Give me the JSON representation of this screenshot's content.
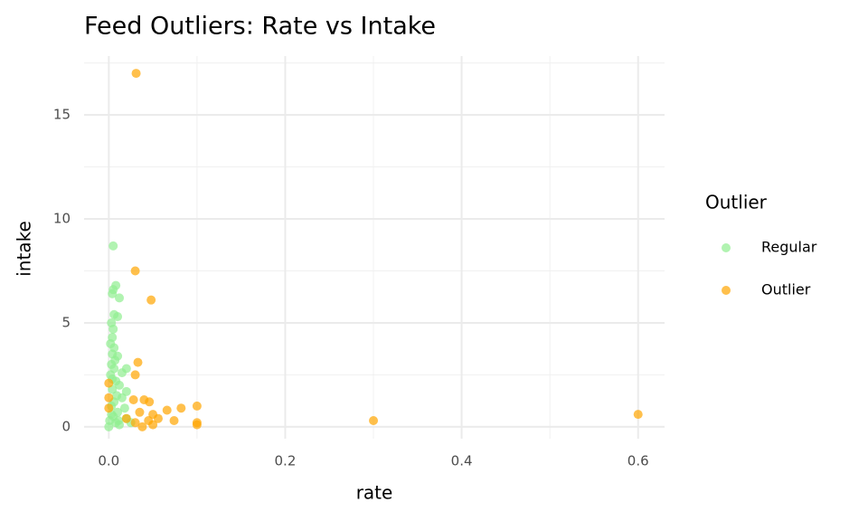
{
  "chart_data": {
    "type": "scatter",
    "title": "Feed Outliers: Rate vs Intake",
    "x_label": "rate",
    "y_label": "intake",
    "legend_title": "Outlier",
    "legend_position": "right",
    "grid": true,
    "xlim": [
      -0.028,
      0.63
    ],
    "ylim": [
      -0.57,
      17.83
    ],
    "xticks": [
      {
        "value": 0,
        "label": "0.0"
      },
      0.2,
      0.4,
      0.6
    ],
    "yticks": [
      0,
      5,
      10,
      15
    ],
    "xminor": [
      0.1,
      0.3,
      0.5
    ],
    "yminor": [
      2.5,
      7.5,
      12.5,
      17.5
    ],
    "series": [
      {
        "name": "Regular",
        "color": "#90EE90",
        "x": [
          0.005,
          0.008,
          0.005,
          0.012,
          0.004,
          0.006,
          0.01,
          0.003,
          0.005,
          0.004,
          0.006,
          0.004,
          0.01,
          0.003,
          0.006,
          0.015,
          0.02,
          0.002,
          0.008,
          0.012,
          0.02,
          0.004,
          0.015,
          0.006,
          0.003,
          0.018,
          0.01,
          0.005,
          0.02,
          0.001,
          0.008,
          0.0,
          0.012,
          0.025,
          0.003,
          0.004,
          0.007,
          0.009,
          0.002,
          0.011
        ],
        "y": [
          8.7,
          6.8,
          6.6,
          6.2,
          6.4,
          5.4,
          5.3,
          5.0,
          4.7,
          4.3,
          3.8,
          3.5,
          3.4,
          3.0,
          2.8,
          2.6,
          2.8,
          2.5,
          2.2,
          2.0,
          1.7,
          1.8,
          1.4,
          1.2,
          1.0,
          0.9,
          0.7,
          0.5,
          0.4,
          0.3,
          0.2,
          0.0,
          0.1,
          0.2,
          0.6,
          2.3,
          3.2,
          1.5,
          4.0,
          0.3
        ]
      },
      {
        "name": "Outlier",
        "color": "#FFA500",
        "x": [
          0.031,
          0.03,
          0.048,
          0.033,
          0.03,
          0.0,
          0.0,
          0.028,
          0.04,
          0.046,
          0.1,
          0.082,
          0.066,
          0.035,
          0.05,
          0.6,
          0.056,
          0.3,
          0.074,
          0.1,
          0.1,
          0.05,
          0.03,
          0.02,
          0.0,
          0.045,
          0.038
        ],
        "y": [
          17.0,
          7.5,
          6.1,
          3.1,
          2.5,
          2.1,
          1.4,
          1.3,
          1.3,
          1.2,
          1.0,
          0.9,
          0.8,
          0.7,
          0.6,
          0.6,
          0.4,
          0.3,
          0.3,
          0.2,
          0.1,
          0.1,
          0.2,
          0.4,
          0.9,
          0.3,
          0.0
        ]
      }
    ]
  }
}
